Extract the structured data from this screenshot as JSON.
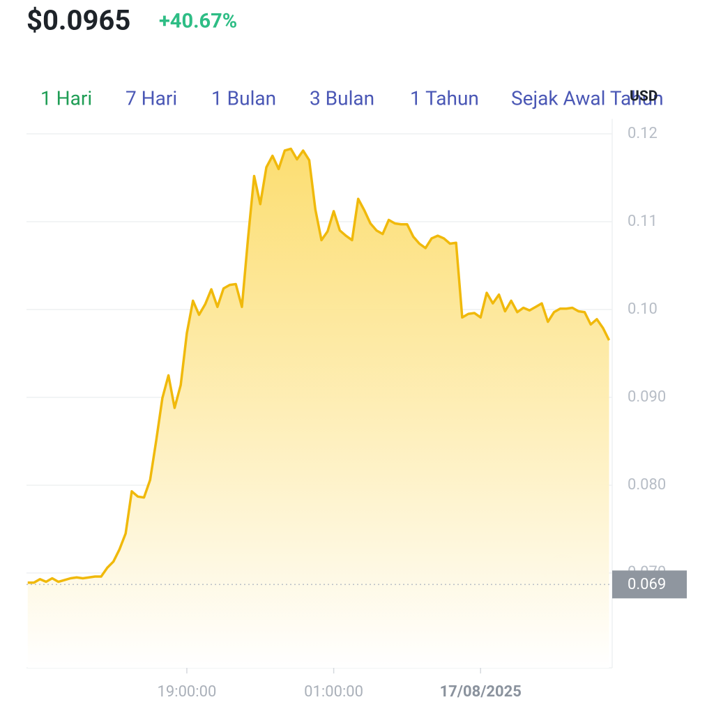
{
  "header": {
    "price": "$0.0965",
    "change": "+40.67%"
  },
  "tabs": [
    "1 Hari",
    "7 Hari",
    "1 Bulan",
    "3 Bulan",
    "1 Tahun",
    "Sejak Awal Tahun"
  ],
  "active_tab": 0,
  "currency": "USD",
  "chart_data": {
    "type": "line",
    "x": [
      12.5,
      12.75,
      13,
      13.25,
      13.5,
      13.75,
      14,
      14.25,
      14.5,
      14.75,
      15,
      15.25,
      15.5,
      15.75,
      16,
      16.25,
      16.5,
      16.75,
      17,
      17.25,
      17.5,
      17.75,
      18,
      18.25,
      18.5,
      18.75,
      19,
      19.25,
      19.5,
      19.75,
      20,
      20.25,
      20.5,
      20.75,
      21,
      21.25,
      21.5,
      21.75,
      22,
      22.25,
      22.5,
      22.75,
      23,
      23.25,
      23.5,
      23.75,
      24,
      24.25,
      24.5,
      24.75,
      25,
      25.25,
      25.5,
      25.75,
      26,
      26.25,
      26.5,
      26.75,
      27,
      27.25,
      27.5,
      27.75,
      28,
      28.25,
      28.5,
      28.75,
      29,
      29.25,
      29.5,
      29.75,
      30,
      30.25,
      30.5,
      30.75,
      31,
      31.25,
      31.5,
      31.75,
      32,
      32.25,
      32.5,
      32.75,
      33,
      33.25,
      33.5,
      33.75,
      34,
      34.25,
      34.5,
      34.75,
      35,
      35.25,
      35.5,
      35.75,
      36,
      36.25
    ],
    "values": [
      0.0689,
      0.0689,
      0.0693,
      0.069,
      0.0694,
      0.069,
      0.0692,
      0.0694,
      0.0695,
      0.0694,
      0.0695,
      0.0696,
      0.0696,
      0.0706,
      0.0713,
      0.0727,
      0.0745,
      0.0793,
      0.0787,
      0.0786,
      0.0806,
      0.0851,
      0.0899,
      0.0925,
      0.0888,
      0.0914,
      0.0973,
      0.101,
      0.0994,
      0.1006,
      0.1023,
      0.1003,
      0.1024,
      0.1028,
      0.1029,
      0.1003,
      0.1081,
      0.1152,
      0.112,
      0.1162,
      0.1175,
      0.116,
      0.1181,
      0.1183,
      0.1171,
      0.1181,
      0.117,
      0.1114,
      0.1079,
      0.1089,
      0.1112,
      0.109,
      0.1084,
      0.1079,
      0.1126,
      0.1113,
      0.1098,
      0.109,
      0.1086,
      0.1102,
      0.1098,
      0.1097,
      0.1097,
      0.1083,
      0.1075,
      0.107,
      0.1081,
      0.1084,
      0.1081,
      0.1075,
      0.1076,
      0.0991,
      0.0995,
      0.0996,
      0.0991,
      0.1019,
      0.1007,
      0.1017,
      0.0998,
      0.101,
      0.0997,
      0.1002,
      0.0999,
      0.1003,
      0.1007,
      0.0986,
      0.0997,
      0.1001,
      0.1001,
      0.1002,
      0.0998,
      0.0997,
      0.0983,
      0.0989,
      0.0979,
      0.0965
    ],
    "color": "#f0b90b",
    "xlim": [
      12.45,
      36.32
    ],
    "ylim": [
      0.0592,
      0.1217
    ],
    "yticks": [
      0.12,
      0.11,
      {
        "value": 0.1,
        "label": "0.10"
      },
      {
        "value": 0.09,
        "label": "0.090"
      },
      {
        "value": 0.08,
        "label": "0.080"
      },
      {
        "value": 0.07,
        "label": "0.070"
      }
    ],
    "xticks": [
      {
        "value": 19,
        "label": "19:00:00"
      },
      {
        "value": 25,
        "label": "01:00:00"
      },
      {
        "value": 31,
        "label": "17/08/2025"
      }
    ],
    "current_price": {
      "value": 0.0687,
      "label": "0.069"
    },
    "grid": true
  }
}
